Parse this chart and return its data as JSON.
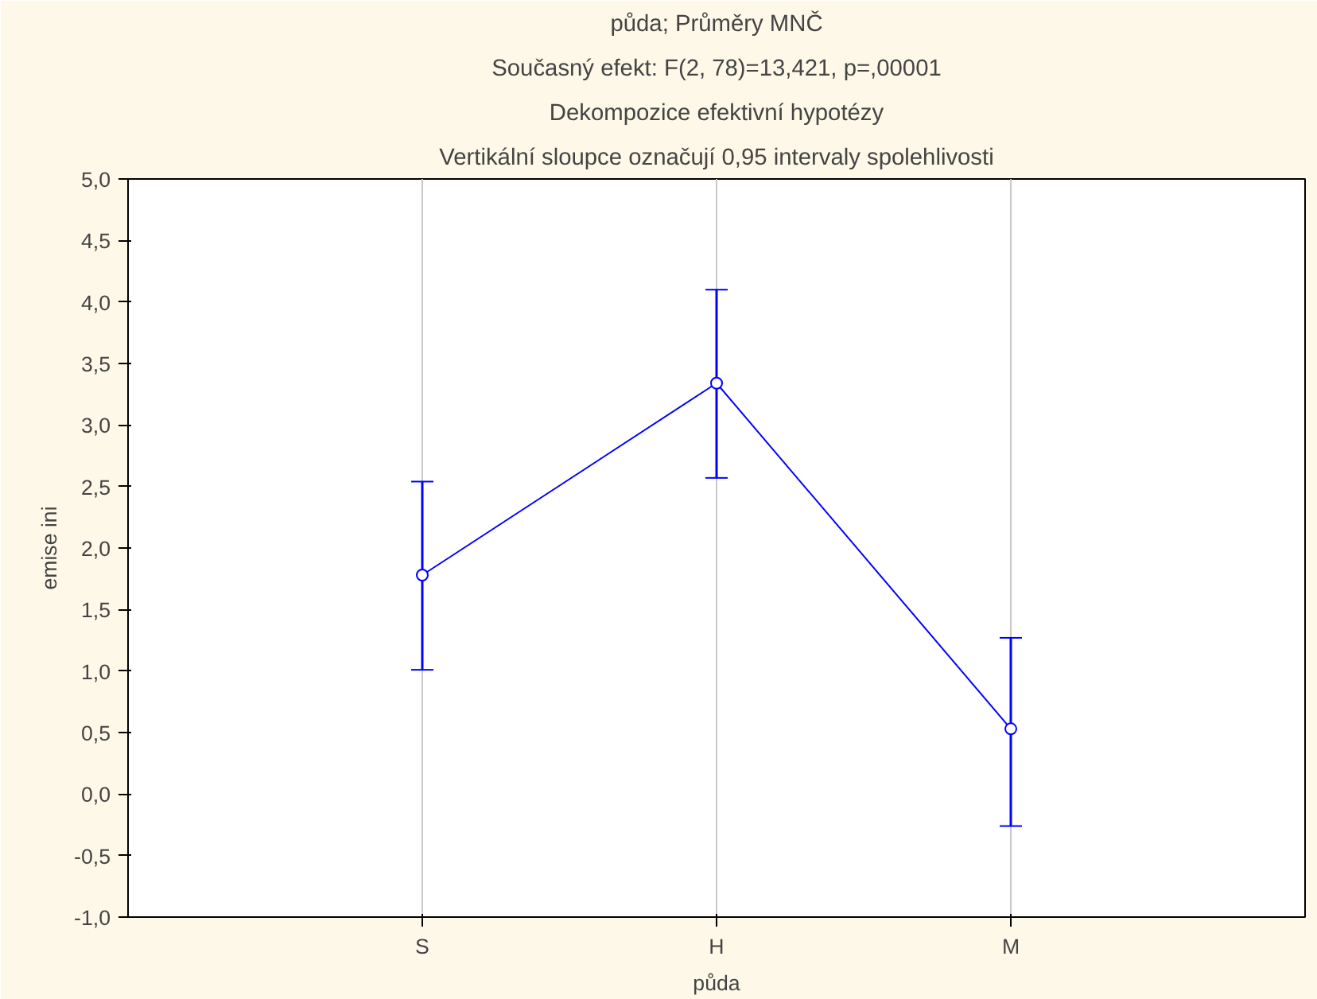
{
  "chart_data": {
    "type": "line",
    "title": "půda; Průměry MNČ",
    "subtitle": "Současný efekt: F(2, 78)=13,421, p=,00001",
    "annotations": [
      "Dekompozice efektivní hypotézy",
      "Vertikální sloupce označují 0,95 intervaly spolehlivosti"
    ],
    "xlabel": "půda",
    "ylabel": "emise ini",
    "categories": [
      "S",
      "H",
      "M"
    ],
    "series": [
      {
        "color": "#0000ff",
        "values": [
          1.78,
          3.34,
          0.53
        ],
        "errors": [
          [
            1.01,
            2.54
          ],
          [
            2.57,
            4.1
          ],
          [
            -0.26,
            1.27
          ]
        ]
      }
    ],
    "ylim": [
      -1.0,
      5.0
    ],
    "yticks": [
      {
        "value": -1.0,
        "label": "-1,0"
      },
      {
        "value": -0.5,
        "label": "-0,5"
      },
      {
        "value": 0.0,
        "label": "0,0"
      },
      {
        "value": 0.5,
        "label": "0,5"
      },
      {
        "value": 1.0,
        "label": "1,0"
      },
      {
        "value": 1.5,
        "label": "1,5"
      },
      {
        "value": 2.0,
        "label": "2,0"
      },
      {
        "value": 2.5,
        "label": "2,5"
      },
      {
        "value": 3.0,
        "label": "3,0"
      },
      {
        "value": 3.5,
        "label": "3,5"
      },
      {
        "value": 4.0,
        "label": "4,0"
      },
      {
        "value": 4.5,
        "label": "4,5"
      },
      {
        "value": 5.0,
        "label": "5,0"
      }
    ],
    "grid": "x",
    "marker": "circle",
    "line_style": "solid"
  }
}
